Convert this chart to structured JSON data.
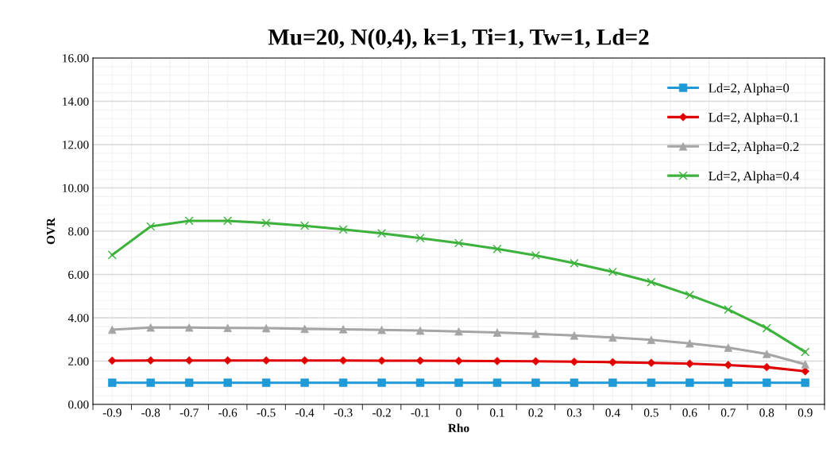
{
  "chart_data": {
    "type": "line",
    "title": "Mu=20, N(0,4), k=1, Ti=1, Tw=1, Ld=2",
    "xlabel": "Rho",
    "ylabel": "OVR",
    "categories": [
      "-0.9",
      "-0.8",
      "-0.7",
      "-0.6",
      "-0.5",
      "-0.4",
      "-0.3",
      "-0.2",
      "-0.1",
      "0",
      "0.1",
      "0.2",
      "0.3",
      "0.4",
      "0.5",
      "0.6",
      "0.7",
      "0.8",
      "0.9"
    ],
    "ylim": [
      0,
      16
    ],
    "yticks": [
      {
        "value": 0,
        "label": "0.00"
      },
      {
        "value": 2,
        "label": "2.00"
      },
      {
        "value": 4,
        "label": "4.00"
      },
      {
        "value": 6,
        "label": "6.00"
      },
      {
        "value": 8,
        "label": "8.00"
      },
      {
        "value": 10,
        "label": "10.00"
      },
      {
        "value": 12,
        "label": "12.00"
      },
      {
        "value": 14,
        "label": "14.00"
      },
      {
        "value": 16,
        "label": "16.00"
      }
    ],
    "grid": true,
    "legend": "top right",
    "series": [
      {
        "name": "Ld=2, Alpha=0",
        "color": "#1f9ad6",
        "marker": "square",
        "values": [
          1,
          1,
          1,
          1,
          1,
          1,
          1,
          1,
          1,
          1,
          1,
          1,
          1,
          1,
          1,
          1,
          1,
          1,
          1
        ]
      },
      {
        "name": "Ld=2, Alpha=0.1",
        "color": "#e00000",
        "marker": "diamond",
        "values": [
          2.02,
          2.03,
          2.03,
          2.03,
          2.03,
          2.03,
          2.03,
          2.02,
          2.02,
          2.01,
          2.0,
          1.99,
          1.97,
          1.95,
          1.92,
          1.88,
          1.82,
          1.72,
          1.53
        ]
      },
      {
        "name": "Ld=2, Alpha=0.2",
        "color": "#a5a5a5",
        "marker": "triangle",
        "values": [
          3.45,
          3.55,
          3.55,
          3.53,
          3.52,
          3.49,
          3.47,
          3.44,
          3.41,
          3.37,
          3.32,
          3.26,
          3.18,
          3.09,
          2.98,
          2.82,
          2.62,
          2.33,
          1.85
        ]
      },
      {
        "name": "Ld=2, Alpha=0.4",
        "color": "#3cb23c",
        "marker": "cross",
        "values": [
          6.9,
          8.22,
          8.48,
          8.48,
          8.38,
          8.25,
          8.08,
          7.9,
          7.68,
          7.45,
          7.18,
          6.88,
          6.52,
          6.12,
          5.65,
          5.05,
          4.38,
          3.52,
          2.42
        ]
      }
    ]
  }
}
